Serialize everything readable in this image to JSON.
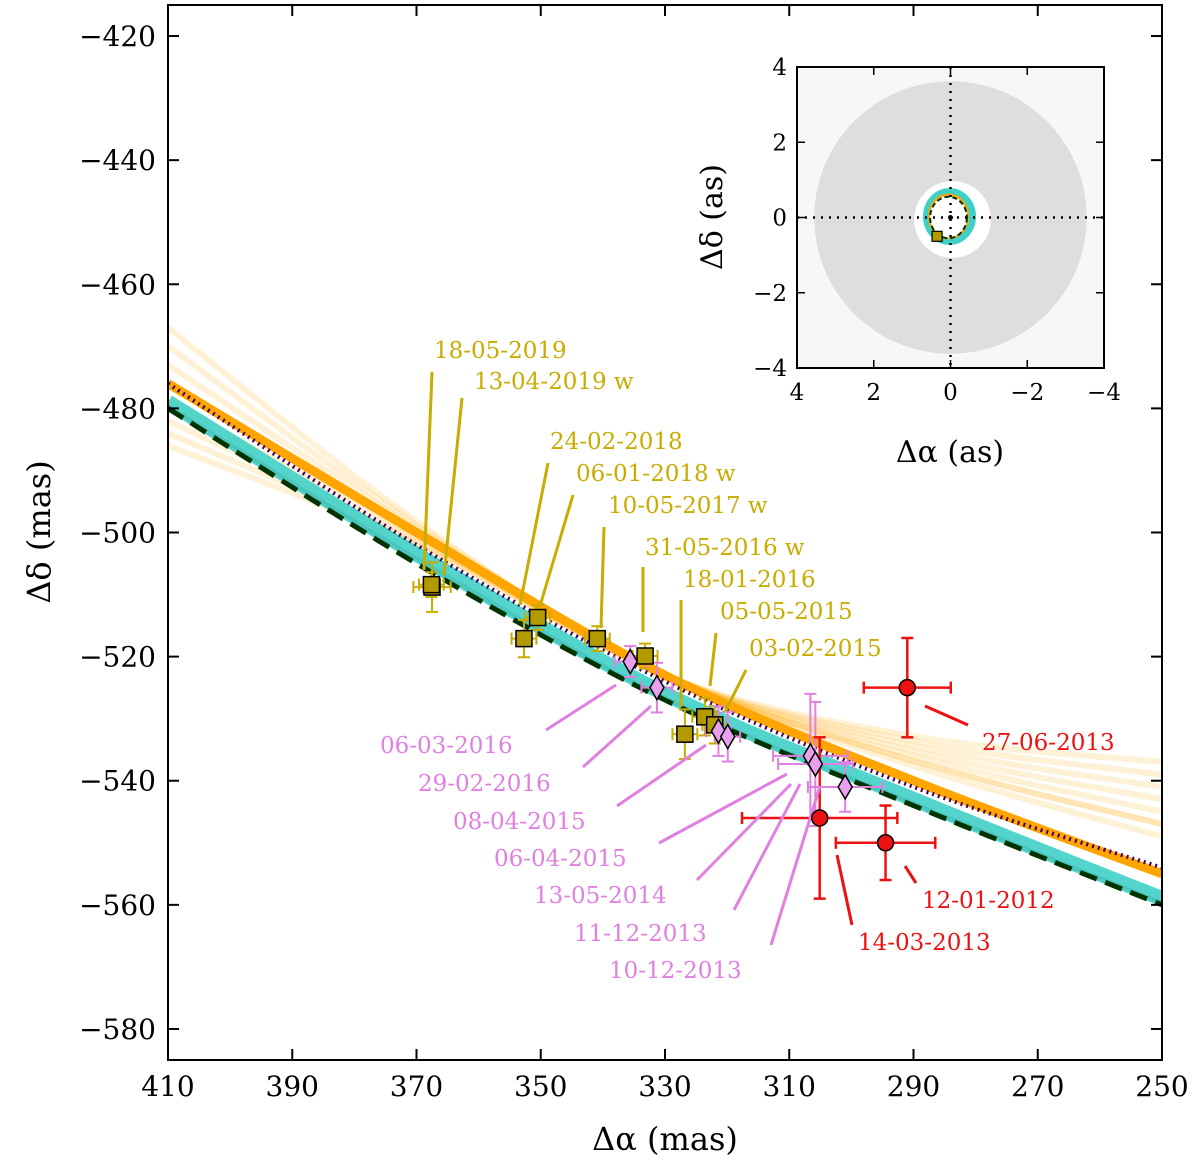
{
  "chart_data": [
    {
      "type": "scatter",
      "xlabel": "Δα (mas)",
      "ylabel": "Δδ (mas)",
      "xlim": [
        410,
        250
      ],
      "ylim": [
        -585,
        -415
      ],
      "xticks": [
        "410",
        "390",
        "370",
        "350",
        "330",
        "310",
        "290",
        "270",
        "250"
      ],
      "yticks": [
        "−420",
        "−440",
        "−460",
        "−480",
        "−500",
        "−520",
        "−540",
        "−560",
        "−580"
      ],
      "colors": {
        "yellow": "#c8ac00",
        "square_fill": "#b39a00",
        "pink": "#e080e0",
        "diamond_fill": "#e8a0ee",
        "red": "#ee1111",
        "cyan": "#40d0c8",
        "orange": "#ffa500",
        "dark_green": "#003300",
        "purple": "#400060"
      },
      "series": [
        {
          "name": "yellow squares",
          "marker": "square",
          "points": [
            {
              "x": 367.5,
              "y": -508.8,
              "ex": 3,
              "ey": 4,
              "label": "18-05-2019"
            },
            {
              "x": 367.6,
              "y": -508.4,
              "ex": 2,
              "ey": 2,
              "label": "13-04-2019 w"
            },
            {
              "x": 352.7,
              "y": -517.1,
              "ex": 2,
              "ey": 3,
              "label": "24-02-2018"
            },
            {
              "x": 350.5,
              "y": -513.7,
              "ex": 2,
              "ey": 2,
              "label": "06-01-2018 w"
            },
            {
              "x": 340.9,
              "y": -517.1,
              "ex": 2,
              "ey": 2,
              "label": "10-05-2017 w"
            },
            {
              "x": 333.2,
              "y": -519.9,
              "ex": 2,
              "ey": 2,
              "label": "31-05-2016 w"
            },
            {
              "x": 326.8,
              "y": -532.5,
              "ex": 2,
              "ey": 4,
              "label": "18-01-2016"
            },
            {
              "x": 323.6,
              "y": -529.7,
              "ex": 2,
              "ey": 3,
              "label": "05-05-2015"
            },
            {
              "x": 322.0,
              "y": -531.0,
              "ex": 2,
              "ey": 3,
              "label": "03-02-2015"
            }
          ]
        },
        {
          "name": "pink diamonds",
          "marker": "diamond",
          "points": [
            {
              "x": 335.6,
              "y": -520.8,
              "ex": 2.5,
              "ey": 2.5,
              "label": "06-03-2016"
            },
            {
              "x": 331.3,
              "y": -525.0,
              "ex": 2.5,
              "ey": 4,
              "label": "29-02-2016"
            },
            {
              "x": 321.4,
              "y": -532.0,
              "ex": 2,
              "ey": 4,
              "label": "08-04-2015"
            },
            {
              "x": 319.9,
              "y": -532.9,
              "ex": 2,
              "ey": 4,
              "label": "06-04-2015"
            },
            {
              "x": 306.6,
              "y": -536.0,
              "ex": 6,
              "ey": 10,
              "label": "13-05-2014"
            },
            {
              "x": 305.8,
              "y": -537.3,
              "ex": 6,
              "ey": 10,
              "label": "11-12-2013"
            },
            {
              "x": 301.0,
              "y": -541.0,
              "ex": 6,
              "ey": 4,
              "label": "10-12-2013"
            }
          ]
        },
        {
          "name": "red circles",
          "marker": "circle",
          "points": [
            {
              "x": 291.0,
              "y": -525.0,
              "ex": 7,
              "ey": 8,
              "label": "27-06-2013"
            },
            {
              "x": 294.5,
              "y": -550.0,
              "ex": 8,
              "ey": 6,
              "label": "12-01-2012"
            },
            {
              "x": 305.1,
              "y": -546.0,
              "ex": 12.5,
              "ey": 13,
              "label": "14-03-2013"
            }
          ]
        }
      ],
      "curves": [
        {
          "name": "orange orbit band",
          "x": [
            410,
            370,
            330,
            290,
            250
          ],
          "y": [
            -476,
            -500,
            -523,
            -540,
            -555
          ]
        },
        {
          "name": "dotted purple",
          "x": [
            410,
            370,
            330,
            290,
            250
          ],
          "y": [
            -476,
            -502,
            -524,
            -541,
            -554
          ]
        },
        {
          "name": "cyan orbit band",
          "x": [
            410,
            370,
            330,
            290,
            250
          ],
          "y": [
            -479,
            -503.5,
            -526,
            -543,
            -559
          ]
        },
        {
          "name": "dashed dark green",
          "x": [
            410,
            370,
            330,
            290,
            250
          ],
          "y": [
            -480,
            -505,
            -527,
            -544,
            -560
          ]
        }
      ]
    },
    {
      "type": "scatter",
      "title": "inset",
      "xlabel": "Δα (as)",
      "ylabel": "Δδ (as)",
      "xlim": [
        4,
        -4
      ],
      "ylim": [
        -4,
        4
      ],
      "xticks": [
        "4",
        "2",
        "0",
        "−2",
        "−4"
      ],
      "yticks": [
        "4",
        "2",
        "0",
        "−2",
        "−4"
      ],
      "shaded_disk_radius_as": 3.55,
      "inner_orbit_radius_as": 0.6,
      "marker": {
        "x": 0.35,
        "y": -0.5
      }
    }
  ]
}
